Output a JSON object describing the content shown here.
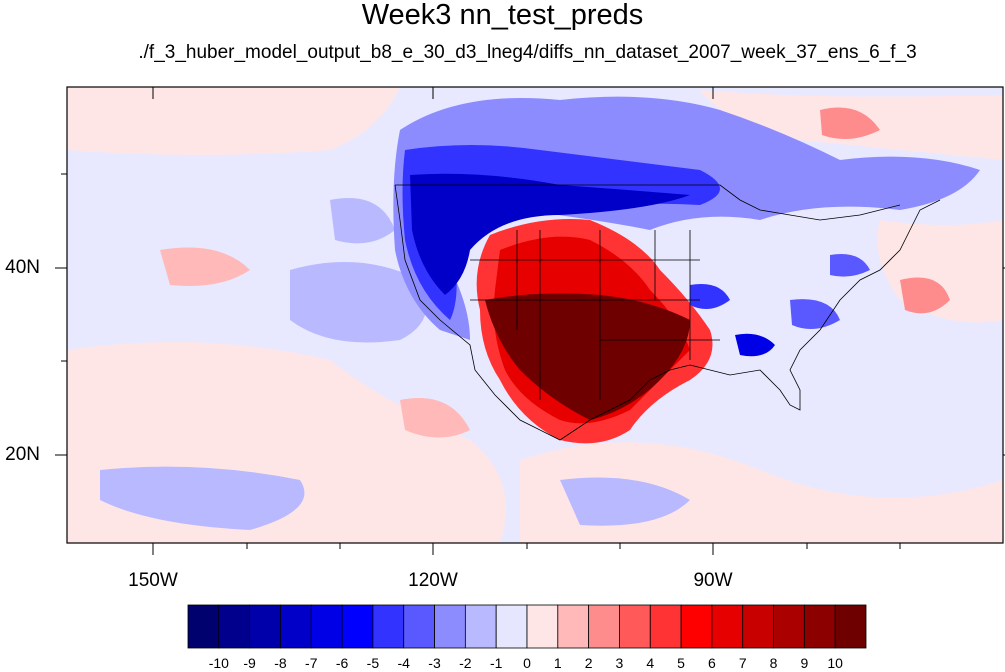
{
  "title": "Week3 nn_test_preds",
  "subtitle": "./f_3_huber_model_output_b8_e_30_d3_lneg4/diffs_nn_dataset_2007_week_37_ens_6_f_3",
  "map": {
    "lat_labels": [
      "40N",
      "20N"
    ],
    "lon_labels": [
      "150W",
      "120W",
      "90W"
    ]
  },
  "colorbar": {
    "labels": [
      "-10",
      "-9",
      "-8",
      "-7",
      "-6",
      "-5",
      "-4",
      "-3",
      "-2",
      "-1",
      "0",
      "1",
      "2",
      "3",
      "4",
      "5",
      "6",
      "7",
      "8",
      "9",
      "10"
    ],
    "colors": [
      "#00006e",
      "#00008c",
      "#0000aa",
      "#0000c8",
      "#0000e6",
      "#0000ff",
      "#3333ff",
      "#5959ff",
      "#8c8cff",
      "#b9b9ff",
      "#e6e6ff",
      "#ffe6e6",
      "#ffb9b9",
      "#ff8c8c",
      "#ff5959",
      "#ff3333",
      "#ff0000",
      "#e60000",
      "#c80000",
      "#aa0000",
      "#8c0000",
      "#6e0000"
    ]
  }
}
